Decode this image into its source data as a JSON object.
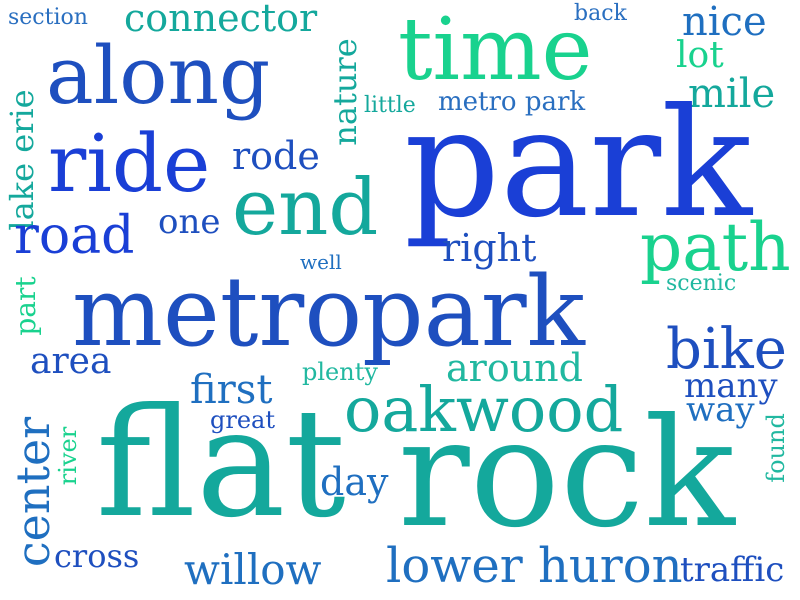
{
  "palette": {
    "blue_dark": "#1a3fd6",
    "blue": "#1e4fbf",
    "blue_mid": "#1f6fc0",
    "teal_blue": "#2a8fb8",
    "teal": "#14a89c",
    "green": "#19d28e",
    "teal_soft": "#21b8a0",
    "background": "#ffffff"
  },
  "words": [
    {
      "text": "section"
    },
    {
      "text": "connector"
    },
    {
      "text": "back"
    },
    {
      "text": "nice"
    },
    {
      "text": "time"
    },
    {
      "text": "along"
    },
    {
      "text": "lot"
    },
    {
      "text": "mile"
    },
    {
      "text": "nature"
    },
    {
      "text": "little"
    },
    {
      "text": "metro park"
    },
    {
      "text": "lake erie"
    },
    {
      "text": "ride"
    },
    {
      "text": "rode"
    },
    {
      "text": "park"
    },
    {
      "text": "end"
    },
    {
      "text": "one"
    },
    {
      "text": "road"
    },
    {
      "text": "path"
    },
    {
      "text": "right"
    },
    {
      "text": "well"
    },
    {
      "text": "scenic"
    },
    {
      "text": "part"
    },
    {
      "text": "metropark"
    },
    {
      "text": "bike"
    },
    {
      "text": "area"
    },
    {
      "text": "plenty"
    },
    {
      "text": "around"
    },
    {
      "text": "many"
    },
    {
      "text": "first"
    },
    {
      "text": "way"
    },
    {
      "text": "oakwood"
    },
    {
      "text": "great"
    },
    {
      "text": "center"
    },
    {
      "text": "river"
    },
    {
      "text": "flat"
    },
    {
      "text": "rock"
    },
    {
      "text": "day"
    },
    {
      "text": "found"
    },
    {
      "text": "cross"
    },
    {
      "text": "willow"
    },
    {
      "text": "lower huron"
    },
    {
      "text": "traffic"
    }
  ]
}
